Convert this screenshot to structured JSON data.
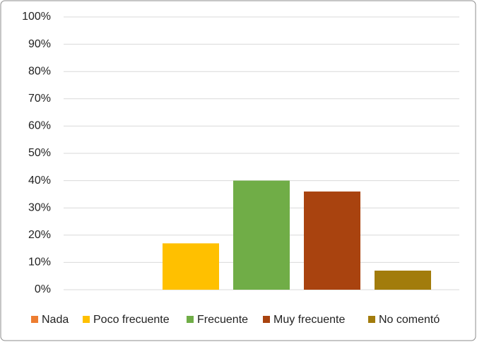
{
  "chart_data": {
    "type": "bar",
    "series": [
      {
        "name": "Nada",
        "color": "#ed7d31",
        "values": [
          0
        ]
      },
      {
        "name": "Poco frecuente",
        "color": "#ffc000",
        "values": [
          17
        ]
      },
      {
        "name": "Frecuente",
        "color": "#70ad47",
        "values": [
          40
        ]
      },
      {
        "name": "Muy frecuente",
        "color": "#a9430f",
        "values": [
          36
        ]
      },
      {
        "name": "No comentó",
        "color": "#a27c0c",
        "values": [
          7
        ]
      }
    ],
    "ylim": [
      0,
      100
    ],
    "yticks": [
      {
        "value": 0,
        "label": "0%"
      },
      {
        "value": 10,
        "label": "10%"
      },
      {
        "value": 20,
        "label": "20%"
      },
      {
        "value": 30,
        "label": "30%"
      },
      {
        "value": 40,
        "label": "40%"
      },
      {
        "value": 50,
        "label": "50%"
      },
      {
        "value": 60,
        "label": "60%"
      },
      {
        "value": 70,
        "label": "70%"
      },
      {
        "value": 80,
        "label": "80%"
      },
      {
        "value": 90,
        "label": "90%"
      },
      {
        "value": 100,
        "label": "100%"
      }
    ],
    "grid": true,
    "legend": "bottom"
  }
}
